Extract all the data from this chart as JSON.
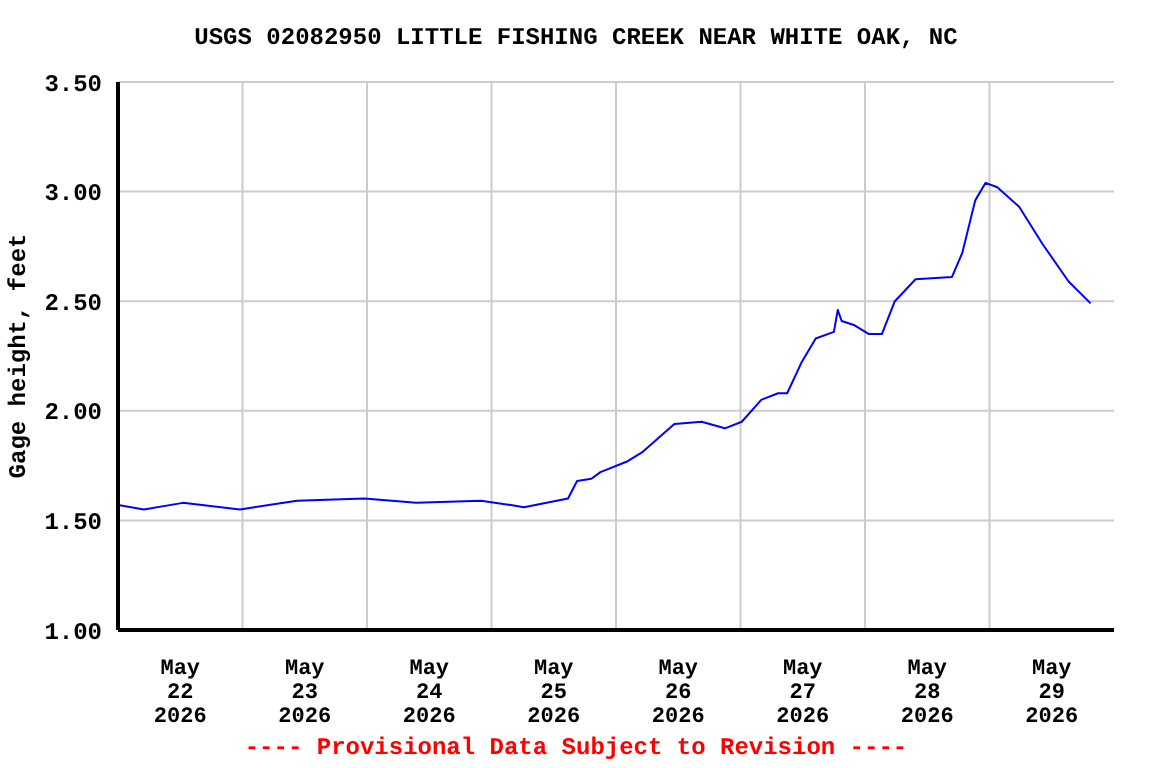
{
  "chart_data": {
    "type": "line",
    "title": "USGS 02082950 LITTLE FISHING CREEK NEAR WHITE OAK, NC",
    "ylabel": "Gage height, feet",
    "annotations": [
      "---- Provisional Data Subject to Revision ----"
    ],
    "x": [
      "2026-05-22T00:00",
      "2026-05-22T05:00",
      "2026-05-22T12:30",
      "2026-05-22T23:30",
      "2026-05-23T10:30",
      "2026-05-23T23:30",
      "2026-05-24T09:30",
      "2026-05-24T22:00",
      "2026-05-25T03:45",
      "2026-05-25T06:15",
      "2026-05-25T14:45",
      "2026-05-25T16:30",
      "2026-05-25T19:15",
      "2026-05-25T21:00",
      "2026-05-26T02:15",
      "2026-05-26T05:00",
      "2026-05-26T11:15",
      "2026-05-26T16:30",
      "2026-05-26T21:00",
      "2026-05-27T00:15",
      "2026-05-27T04:00",
      "2026-05-27T07:15",
      "2026-05-27T09:00",
      "2026-05-27T11:45",
      "2026-05-27T14:30",
      "2026-05-27T18:00",
      "2026-05-27T18:45",
      "2026-05-27T19:30",
      "2026-05-27T22:00",
      "2026-05-28T00:45",
      "2026-05-28T03:15",
      "2026-05-28T05:45",
      "2026-05-28T09:45",
      "2026-05-28T16:45",
      "2026-05-28T18:45",
      "2026-05-28T21:15",
      "2026-05-28T23:15",
      "2026-05-29T01:30",
      "2026-05-29T05:45",
      "2026-05-29T10:15",
      "2026-05-29T15:15",
      "2026-05-29T19:30"
    ],
    "series": [
      {
        "color": "#0000ff",
        "values": [
          1.57,
          1.55,
          1.58,
          1.55,
          1.59,
          1.6,
          1.58,
          1.59,
          1.57,
          1.56,
          1.6,
          1.68,
          1.69,
          1.72,
          1.77,
          1.81,
          1.94,
          1.95,
          1.92,
          1.95,
          2.05,
          2.08,
          2.08,
          2.22,
          2.33,
          2.36,
          2.46,
          2.41,
          2.39,
          2.35,
          2.35,
          2.5,
          2.6,
          2.61,
          2.72,
          2.96,
          3.04,
          3.02,
          2.93,
          2.76,
          2.59,
          2.49
        ]
      }
    ],
    "xlim": [
      "2026-05-22T00:00",
      "2026-05-30T00:00"
    ],
    "xticks": [
      {
        "value": "2026-05-22T12:00",
        "label": "May\n22\n2026"
      },
      {
        "value": "2026-05-23T00:00",
        "label": null
      },
      {
        "value": "2026-05-23T12:00",
        "label": "May\n23\n2026"
      },
      {
        "value": "2026-05-24T00:00",
        "label": null
      },
      {
        "value": "2026-05-24T12:00",
        "label": "May\n24\n2026"
      },
      {
        "value": "2026-05-25T00:00",
        "label": null
      },
      {
        "value": "2026-05-25T12:00",
        "label": "May\n25\n2026"
      },
      {
        "value": "2026-05-26T00:00",
        "label": null
      },
      {
        "value": "2026-05-26T12:00",
        "label": "May\n26\n2026"
      },
      {
        "value": "2026-05-27T00:00",
        "label": null
      },
      {
        "value": "2026-05-27T12:00",
        "label": "May\n27\n2026"
      },
      {
        "value": "2026-05-28T00:00",
        "label": null
      },
      {
        "value": "2026-05-28T12:00",
        "label": "May\n28\n2026"
      },
      {
        "value": "2026-05-29T00:00",
        "label": null
      },
      {
        "value": "2026-05-29T12:00",
        "label": "May\n29\n2026"
      }
    ],
    "ylim": [
      1.0,
      3.5
    ],
    "yticks": [
      {
        "value": 1.0,
        "label": "1.00"
      },
      {
        "value": 1.5,
        "label": "1.50"
      },
      {
        "value": 2.0,
        "label": "2.00"
      },
      {
        "value": 2.5,
        "label": "2.50"
      },
      {
        "value": 3.0,
        "label": "3.00"
      },
      {
        "value": 3.5,
        "label": "3.50"
      }
    ],
    "grid": true,
    "marker": "none",
    "line_style": "solid"
  }
}
